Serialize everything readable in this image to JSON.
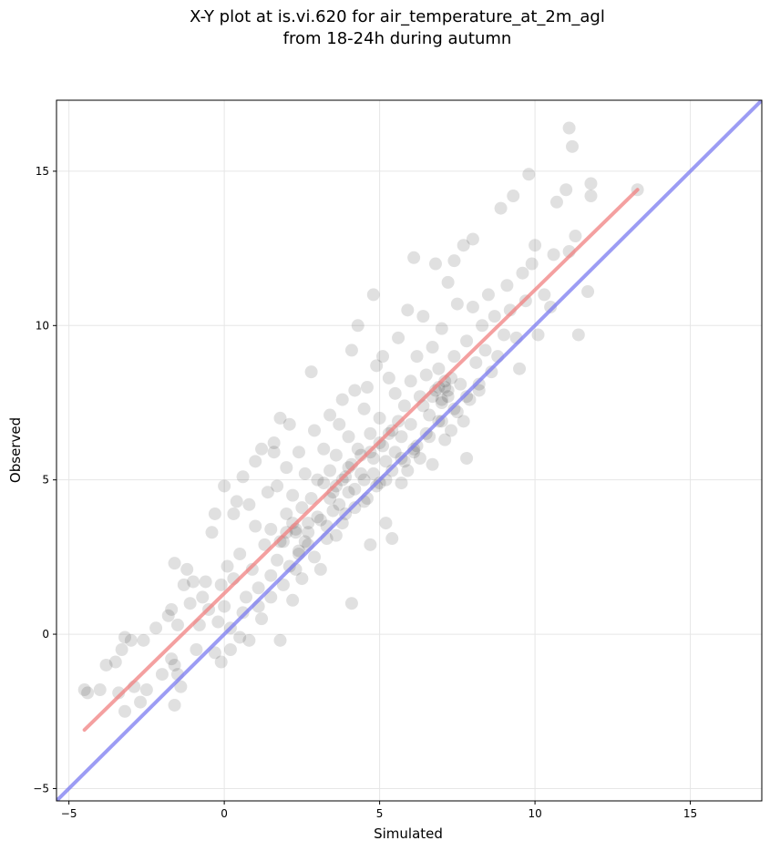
{
  "chart_data": {
    "type": "scatter",
    "title_line1": "X-Y plot at is.vi.620 for air_temperature_at_2m_agl",
    "title_line2": "from 18-24h during autumn",
    "xlabel": "Simulated",
    "ylabel": "Observed",
    "xlim": [
      -5.4,
      17.3
    ],
    "ylim": [
      -5.4,
      17.3
    ],
    "xticks": [
      -5,
      0,
      5,
      10,
      15
    ],
    "yticks": [
      -5,
      0,
      5,
      10,
      15
    ],
    "xtick_labels": [
      "−5",
      "0",
      "5",
      "10",
      "15"
    ],
    "ytick_labels": [
      "−5",
      "0",
      "5",
      "10",
      "15"
    ],
    "grid": true,
    "points_color": "#000000",
    "points_opacity": 0.12,
    "regression_line": {
      "color": "#f08080",
      "x": [
        -4.5,
        13.3
      ],
      "y": [
        -3.1,
        14.4
      ]
    },
    "identity_line": {
      "color": "#7b7bf0",
      "x": [
        -5.4,
        17.3
      ],
      "y": [
        -5.4,
        17.3
      ]
    },
    "points": [
      [
        -4.5,
        -1.8
      ],
      [
        -4.4,
        -1.9
      ],
      [
        -4.0,
        -1.8
      ],
      [
        -3.8,
        -1.0
      ],
      [
        -3.5,
        -0.9
      ],
      [
        -3.3,
        -0.5
      ],
      [
        -3.2,
        -0.1
      ],
      [
        -3.0,
        -0.2
      ],
      [
        -3.4,
        -1.9
      ],
      [
        -3.2,
        -2.5
      ],
      [
        -2.9,
        -1.7
      ],
      [
        -2.7,
        -2.2
      ],
      [
        -2.6,
        -0.2
      ],
      [
        -2.5,
        -1.8
      ],
      [
        -2.2,
        0.2
      ],
      [
        -2.0,
        -1.3
      ],
      [
        -1.8,
        0.6
      ],
      [
        -1.7,
        0.8
      ],
      [
        -1.6,
        2.3
      ],
      [
        -1.5,
        0.3
      ],
      [
        -1.7,
        -0.8
      ],
      [
        -1.6,
        -1.0
      ],
      [
        -1.5,
        -1.3
      ],
      [
        -1.4,
        -1.7
      ],
      [
        -1.6,
        -2.3
      ],
      [
        -1.3,
        1.6
      ],
      [
        -1.2,
        2.1
      ],
      [
        -1.1,
        1.0
      ],
      [
        -1.0,
        1.7
      ],
      [
        -0.9,
        -0.5
      ],
      [
        -0.8,
        0.3
      ],
      [
        -0.7,
        1.2
      ],
      [
        -0.6,
        1.7
      ],
      [
        -0.5,
        0.8
      ],
      [
        -0.4,
        3.3
      ],
      [
        -0.3,
        3.9
      ],
      [
        -0.2,
        0.4
      ],
      [
        -0.1,
        -0.9
      ],
      [
        0.0,
        4.8
      ],
      [
        0.1,
        2.2
      ],
      [
        -0.1,
        1.6
      ],
      [
        0.0,
        0.9
      ],
      [
        0.2,
        0.2
      ],
      [
        0.2,
        -0.5
      ],
      [
        0.3,
        1.8
      ],
      [
        0.3,
        3.9
      ],
      [
        0.4,
        4.3
      ],
      [
        0.5,
        2.6
      ],
      [
        0.6,
        5.1
      ],
      [
        0.6,
        0.7
      ],
      [
        0.7,
        1.2
      ],
      [
        0.8,
        4.2
      ],
      [
        0.8,
        -0.2
      ],
      [
        0.9,
        2.1
      ],
      [
        1.0,
        3.5
      ],
      [
        1.0,
        5.6
      ],
      [
        1.1,
        1.5
      ],
      [
        1.2,
        6.0
      ],
      [
        1.2,
        0.5
      ],
      [
        1.3,
        2.9
      ],
      [
        1.4,
        4.6
      ],
      [
        1.5,
        1.9
      ],
      [
        1.5,
        3.4
      ],
      [
        1.6,
        5.9
      ],
      [
        1.6,
        6.2
      ],
      [
        1.7,
        4.8
      ],
      [
        1.7,
        2.4
      ],
      [
        1.8,
        -0.2
      ],
      [
        1.8,
        7.0
      ],
      [
        1.9,
        3.0
      ],
      [
        2.0,
        3.9
      ],
      [
        2.0,
        5.4
      ],
      [
        2.1,
        2.2
      ],
      [
        2.1,
        6.8
      ],
      [
        2.2,
        1.1
      ],
      [
        2.2,
        4.5
      ],
      [
        2.3,
        3.3
      ],
      [
        2.4,
        2.7
      ],
      [
        2.4,
        5.9
      ],
      [
        2.5,
        4.1
      ],
      [
        2.5,
        1.8
      ],
      [
        2.6,
        5.2
      ],
      [
        2.7,
        3.6
      ],
      [
        2.7,
        2.9
      ],
      [
        2.8,
        8.5
      ],
      [
        2.8,
        4.4
      ],
      [
        2.9,
        6.6
      ],
      [
        3.0,
        3.8
      ],
      [
        3.0,
        5.0
      ],
      [
        3.1,
        2.1
      ],
      [
        3.2,
        4.9
      ],
      [
        3.2,
        6.0
      ],
      [
        3.3,
        3.5
      ],
      [
        3.4,
        5.3
      ],
      [
        3.4,
        7.1
      ],
      [
        3.5,
        4.6
      ],
      [
        3.6,
        3.2
      ],
      [
        3.6,
        5.8
      ],
      [
        3.7,
        6.8
      ],
      [
        3.7,
        4.2
      ],
      [
        3.8,
        7.6
      ],
      [
        3.8,
        5.0
      ],
      [
        3.9,
        3.9
      ],
      [
        4.0,
        6.4
      ],
      [
        4.0,
        5.4
      ],
      [
        4.1,
        1.0
      ],
      [
        4.1,
        9.2
      ],
      [
        4.2,
        7.9
      ],
      [
        4.2,
        4.7
      ],
      [
        4.3,
        10.0
      ],
      [
        4.3,
        6.0
      ],
      [
        4.4,
        5.2
      ],
      [
        4.5,
        7.3
      ],
      [
        4.5,
        4.3
      ],
      [
        4.6,
        8.0
      ],
      [
        4.7,
        2.9
      ],
      [
        4.7,
        6.5
      ],
      [
        4.8,
        5.7
      ],
      [
        4.8,
        11.0
      ],
      [
        4.9,
        4.8
      ],
      [
        4.9,
        8.7
      ],
      [
        5.0,
        7.0
      ],
      [
        5.0,
        6.2
      ],
      [
        5.1,
        9.0
      ],
      [
        5.2,
        5.0
      ],
      [
        5.2,
        3.6
      ],
      [
        5.3,
        8.3
      ],
      [
        5.4,
        6.6
      ],
      [
        5.4,
        3.1
      ],
      [
        5.5,
        7.8
      ],
      [
        5.5,
        5.9
      ],
      [
        5.6,
        9.6
      ],
      [
        5.7,
        6.4
      ],
      [
        5.7,
        4.9
      ],
      [
        5.8,
        7.4
      ],
      [
        5.9,
        10.5
      ],
      [
        5.9,
        5.3
      ],
      [
        6.0,
        8.2
      ],
      [
        6.0,
        6.8
      ],
      [
        6.1,
        12.2
      ],
      [
        6.1,
        6.0
      ],
      [
        6.2,
        9.0
      ],
      [
        6.3,
        7.7
      ],
      [
        6.3,
        5.7
      ],
      [
        6.4,
        10.3
      ],
      [
        6.5,
        6.5
      ],
      [
        6.5,
        8.4
      ],
      [
        6.6,
        7.1
      ],
      [
        6.7,
        9.3
      ],
      [
        6.7,
        5.5
      ],
      [
        6.8,
        12.0
      ],
      [
        6.8,
        7.9
      ],
      [
        6.9,
        6.9
      ],
      [
        6.9,
        8.6
      ],
      [
        7.0,
        7.5
      ],
      [
        7.0,
        9.9
      ],
      [
        7.1,
        6.3
      ],
      [
        7.1,
        8.0
      ],
      [
        7.2,
        11.4
      ],
      [
        7.2,
        7.7
      ],
      [
        7.3,
        8.3
      ],
      [
        7.3,
        6.6
      ],
      [
        7.4,
        12.1
      ],
      [
        7.4,
        9.0
      ],
      [
        7.5,
        7.2
      ],
      [
        7.5,
        10.7
      ],
      [
        7.6,
        8.1
      ],
      [
        7.7,
        12.6
      ],
      [
        7.7,
        6.9
      ],
      [
        7.8,
        5.7
      ],
      [
        7.8,
        9.5
      ],
      [
        7.9,
        7.6
      ],
      [
        8.0,
        10.6
      ],
      [
        8.0,
        12.8
      ],
      [
        8.1,
        8.8
      ],
      [
        8.2,
        7.9
      ],
      [
        8.3,
        10.0
      ],
      [
        8.4,
        9.2
      ],
      [
        8.5,
        11.0
      ],
      [
        8.6,
        8.5
      ],
      [
        8.7,
        10.3
      ],
      [
        8.8,
        9.0
      ],
      [
        8.9,
        13.8
      ],
      [
        9.0,
        9.7
      ],
      [
        9.1,
        11.3
      ],
      [
        9.2,
        10.5
      ],
      [
        9.3,
        14.2
      ],
      [
        9.4,
        9.6
      ],
      [
        9.5,
        8.6
      ],
      [
        9.6,
        11.7
      ],
      [
        9.7,
        10.8
      ],
      [
        9.8,
        14.9
      ],
      [
        9.9,
        12.0
      ],
      [
        10.0,
        12.6
      ],
      [
        10.1,
        9.7
      ],
      [
        10.3,
        11.0
      ],
      [
        10.5,
        10.6
      ],
      [
        10.6,
        12.3
      ],
      [
        10.7,
        14.0
      ],
      [
        11.0,
        14.4
      ],
      [
        11.1,
        12.4
      ],
      [
        11.1,
        16.4
      ],
      [
        11.2,
        15.8
      ],
      [
        11.3,
        12.9
      ],
      [
        11.4,
        9.7
      ],
      [
        11.7,
        11.1
      ],
      [
        11.8,
        14.6
      ],
      [
        11.8,
        14.2
      ],
      [
        13.3,
        14.4
      ],
      [
        -0.3,
        -0.6
      ],
      [
        0.5,
        -0.1
      ],
      [
        1.1,
        0.9
      ],
      [
        1.5,
        1.2
      ],
      [
        1.9,
        1.6
      ],
      [
        2.3,
        2.1
      ],
      [
        2.9,
        2.5
      ],
      [
        3.3,
        3.1
      ],
      [
        3.8,
        3.6
      ],
      [
        4.2,
        4.1
      ],
      [
        4.6,
        4.4
      ],
      [
        5.0,
        4.9
      ],
      [
        5.4,
        5.3
      ],
      [
        5.8,
        5.6
      ],
      [
        6.2,
        6.1
      ],
      [
        6.6,
        6.4
      ],
      [
        7.0,
        6.9
      ],
      [
        7.4,
        7.3
      ],
      [
        7.8,
        7.7
      ],
      [
        8.2,
        8.1
      ],
      [
        1.8,
        3.0
      ],
      [
        2.0,
        3.3
      ],
      [
        2.2,
        3.6
      ],
      [
        2.4,
        2.6
      ],
      [
        2.6,
        3.0
      ],
      [
        3.4,
        4.4
      ],
      [
        3.6,
        4.8
      ],
      [
        3.9,
        5.1
      ],
      [
        4.1,
        5.5
      ],
      [
        4.4,
        5.8
      ],
      [
        4.7,
        5.9
      ],
      [
        5.1,
        6.1
      ],
      [
        5.3,
        6.5
      ],
      [
        5.6,
        6.9
      ],
      [
        6.4,
        7.4
      ],
      [
        6.7,
        7.7
      ],
      [
        6.9,
        8.0
      ],
      [
        7.1,
        8.2
      ],
      [
        7.2,
        7.9
      ],
      [
        7.0,
        7.6
      ],
      [
        6.1,
        5.9
      ],
      [
        5.7,
        5.7
      ],
      [
        5.2,
        5.6
      ],
      [
        4.8,
        5.2
      ],
      [
        4.5,
        5.0
      ],
      [
        4.0,
        4.6
      ],
      [
        3.5,
        4.0
      ],
      [
        3.1,
        3.7
      ],
      [
        2.7,
        3.3
      ],
      [
        2.3,
        3.4
      ]
    ]
  }
}
